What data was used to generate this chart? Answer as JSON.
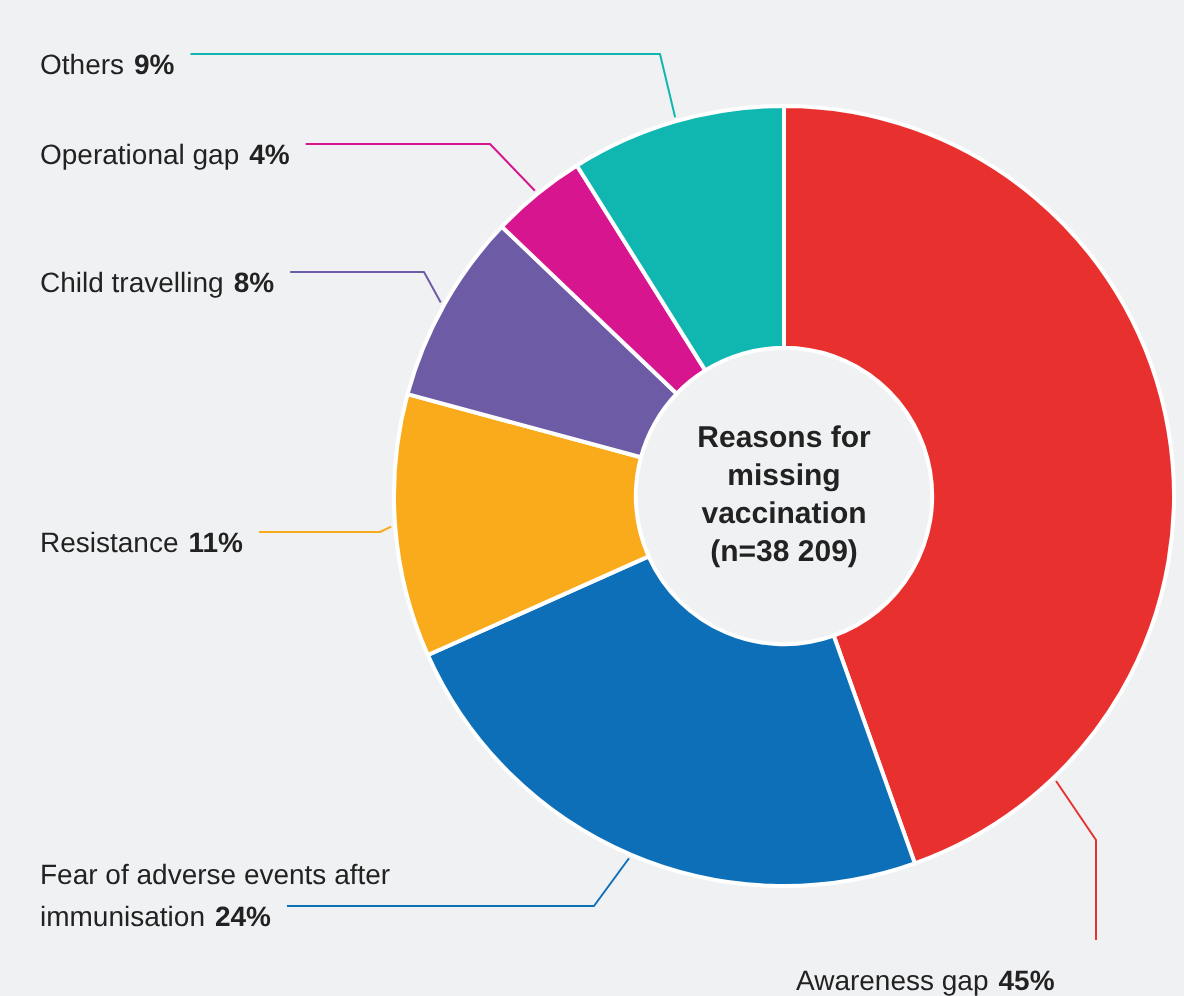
{
  "chart_data": {
    "type": "donut",
    "title": "Reasons for missing vaccination (n=38 209)",
    "categories": [
      "Awareness gap",
      "Fear of adverse events after immunisation",
      "Resistance",
      "Child travelling",
      "Operational gap",
      "Others"
    ],
    "values": [
      45,
      24,
      11,
      8,
      4,
      9
    ],
    "colors": [
      "#e8302f",
      "#0c6fb8",
      "#f9ab1c",
      "#6d5ba5",
      "#d6158e",
      "#10b6b0"
    ],
    "value_labels": [
      "45%",
      "24%",
      "11%",
      "8%",
      "4%",
      "9%"
    ],
    "legend": false
  }
}
